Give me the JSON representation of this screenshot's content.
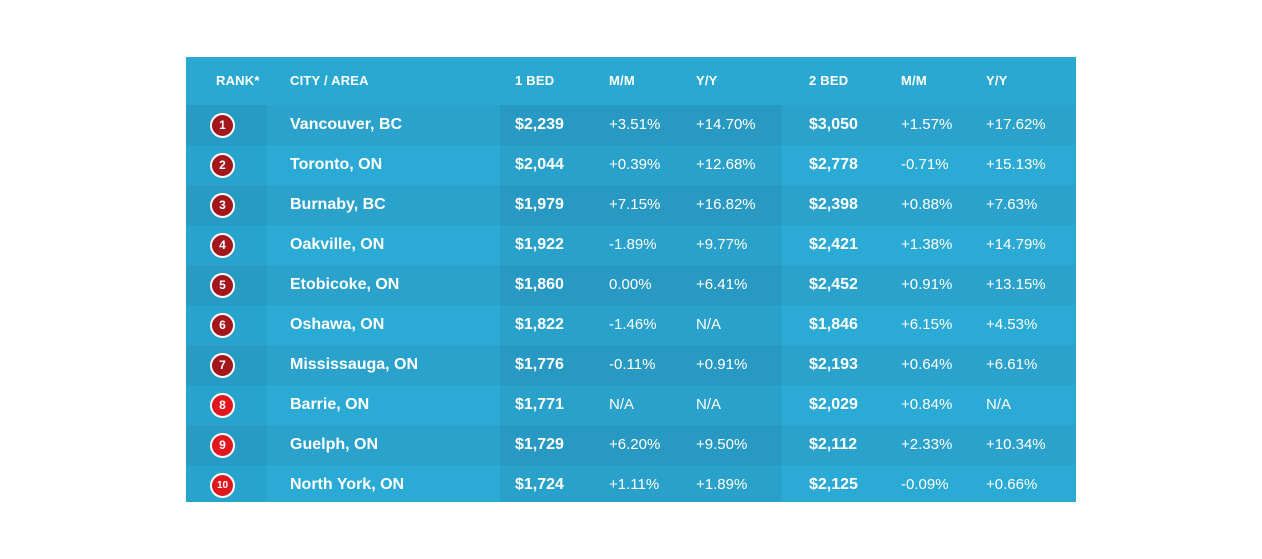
{
  "chart_data": {
    "type": "table",
    "columns": [
      "RANK*",
      "CITY / AREA",
      "1 BED",
      "M/M",
      "Y/Y",
      "2 BED",
      "M/M",
      "Y/Y"
    ],
    "rows": [
      {
        "rank": "1",
        "city": "Vancouver, BC",
        "bed1": "$2,239",
        "bed1_mm": "+3.51%",
        "bed1_yy": "+14.70%",
        "bed2": "$3,050",
        "bed2_mm": "+1.57%",
        "bed2_yy": "+17.62%"
      },
      {
        "rank": "2",
        "city": "Toronto, ON",
        "bed1": "$2,044",
        "bed1_mm": "+0.39%",
        "bed1_yy": "+12.68%",
        "bed2": "$2,778",
        "bed2_mm": "-0.71%",
        "bed2_yy": "+15.13%"
      },
      {
        "rank": "3",
        "city": "Burnaby, BC",
        "bed1": "$1,979",
        "bed1_mm": "+7.15%",
        "bed1_yy": "+16.82%",
        "bed2": "$2,398",
        "bed2_mm": "+0.88%",
        "bed2_yy": "+7.63%"
      },
      {
        "rank": "4",
        "city": "Oakville, ON",
        "bed1": "$1,922",
        "bed1_mm": "-1.89%",
        "bed1_yy": "+9.77%",
        "bed2": "$2,421",
        "bed2_mm": "+1.38%",
        "bed2_yy": "+14.79%"
      },
      {
        "rank": "5",
        "city": "Etobicoke, ON",
        "bed1": "$1,860",
        "bed1_mm": "0.00%",
        "bed1_yy": "+6.41%",
        "bed2": "$2,452",
        "bed2_mm": "+0.91%",
        "bed2_yy": "+13.15%"
      },
      {
        "rank": "6",
        "city": "Oshawa, ON",
        "bed1": "$1,822",
        "bed1_mm": "-1.46%",
        "bed1_yy": "N/A",
        "bed2": "$1,846",
        "bed2_mm": "+6.15%",
        "bed2_yy": "+4.53%"
      },
      {
        "rank": "7",
        "city": "Mississauga, ON",
        "bed1": "$1,776",
        "bed1_mm": "-0.11%",
        "bed1_yy": "+0.91%",
        "bed2": "$2,193",
        "bed2_mm": "+0.64%",
        "bed2_yy": "+6.61%"
      },
      {
        "rank": "8",
        "city": "Barrie, ON",
        "bed1": "$1,771",
        "bed1_mm": "N/A",
        "bed1_yy": "N/A",
        "bed2": "$2,029",
        "bed2_mm": "+0.84%",
        "bed2_yy": "N/A"
      },
      {
        "rank": "9",
        "city": "Guelph, ON",
        "bed1": "$1,729",
        "bed1_mm": "+6.20%",
        "bed1_yy": "+9.50%",
        "bed2": "$2,112",
        "bed2_mm": "+2.33%",
        "bed2_yy": "+10.34%"
      },
      {
        "rank": "10",
        "city": "North York, ON",
        "bed1": "$1,724",
        "bed1_mm": "+1.11%",
        "bed1_yy": "+1.89%",
        "bed2": "$2,125",
        "bed2_mm": "-0.09%",
        "bed2_yy": "+0.66%"
      }
    ]
  },
  "colors": {
    "panel_background": "#2aa8d2",
    "rank_badge_dark": "#a3161c",
    "rank_badge_bright": "#e1171f",
    "text": "#ffffff"
  }
}
